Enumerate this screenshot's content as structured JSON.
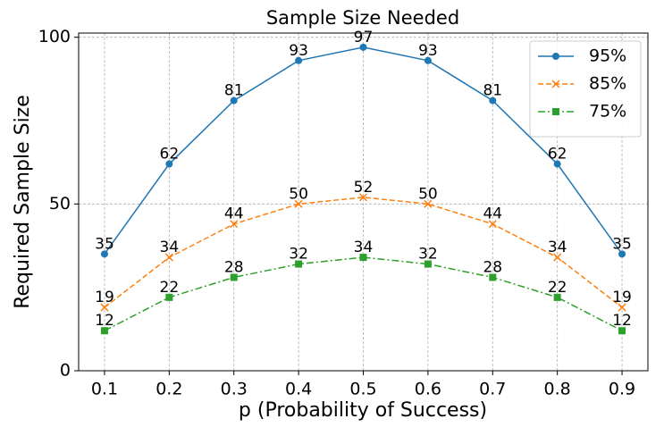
{
  "chart_data": {
    "type": "line",
    "title": "Sample Size Needed",
    "x_label": "p (Probability of Success)",
    "y_label": "Required Sample Size",
    "x": [
      0.1,
      0.2,
      0.3,
      0.4,
      0.5,
      0.6,
      0.7,
      0.8,
      0.9
    ],
    "series": [
      {
        "name": "95%",
        "color": "#1f77b4",
        "marker": "circle",
        "dash": "solid",
        "values": [
          35,
          62,
          81,
          93,
          97,
          93,
          81,
          62,
          35
        ]
      },
      {
        "name": "85%",
        "color": "#ff7f0e",
        "marker": "x",
        "dash": "dashed",
        "values": [
          19,
          34,
          44,
          50,
          52,
          50,
          44,
          34,
          19
        ]
      },
      {
        "name": "75%",
        "color": "#2ca02c",
        "marker": "square",
        "dash": "dashdot",
        "values": [
          12,
          22,
          28,
          32,
          34,
          32,
          28,
          22,
          12
        ]
      }
    ],
    "xlim": [
      0.06,
      0.94
    ],
    "ylim": [
      0,
      101.25
    ],
    "xticks": [
      0.1,
      0.2,
      0.3,
      0.4,
      0.5,
      0.6,
      0.7,
      0.8,
      0.9
    ],
    "yticks": [
      0,
      50,
      100
    ],
    "grid": true,
    "legend": "upper right",
    "data_labels": true
  }
}
